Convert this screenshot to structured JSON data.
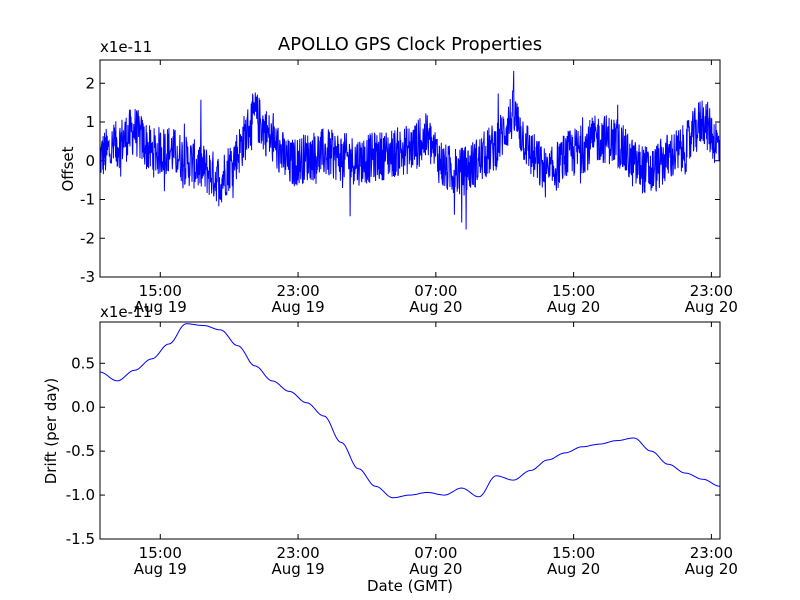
{
  "figure": {
    "title": "APOLLO GPS Clock Properties",
    "xlabel": "Date (GMT)"
  },
  "chart_data": [
    {
      "type": "line",
      "ylabel": "Offset",
      "offset_text": "x1e-11",
      "ylim": [
        -3,
        2.6
      ],
      "yticks": [
        "-3",
        "-2",
        "-1",
        "0",
        "1",
        "2"
      ],
      "xticks": [
        {
          "time": "15:00",
          "date": "Aug 19"
        },
        {
          "time": "23:00",
          "date": "Aug 19"
        },
        {
          "time": "07:00",
          "date": "Aug 20"
        },
        {
          "time": "15:00",
          "date": "Aug 20"
        },
        {
          "time": "23:00",
          "date": "Aug 20"
        }
      ],
      "xrange_hours": [
        "2012-08-19 11:30",
        "2012-08-20 23:30"
      ],
      "line_color": "#0000ff",
      "series": [
        {
          "x": [
            "Aug 19 11:30",
            "Aug 19 12:30",
            "Aug 19 13:30",
            "Aug 19 14:30",
            "Aug 19 15:30",
            "Aug 19 16:30",
            "Aug 19 17:30",
            "Aug 19 18:30",
            "Aug 19 19:30",
            "Aug 19 20:30",
            "Aug 19 21:30",
            "Aug 19 22:30",
            "Aug 19 23:30",
            "Aug 20 00:30",
            "Aug 20 01:30",
            "Aug 20 02:30",
            "Aug 20 03:30",
            "Aug 20 04:30",
            "Aug 20 05:30",
            "Aug 20 06:30",
            "Aug 20 07:30",
            "Aug 20 08:30",
            "Aug 20 09:30",
            "Aug 20 10:30",
            "Aug 20 11:30",
            "Aug 20 12:30",
            "Aug 20 13:30",
            "Aug 20 14:30",
            "Aug 20 15:30",
            "Aug 20 16:30",
            "Aug 20 17:30",
            "Aug 20 18:30",
            "Aug 20 19:30",
            "Aug 20 20:30",
            "Aug 20 21:30",
            "Aug 20 22:30",
            "Aug 20 23:30"
          ],
          "values": [
            0.1,
            0.4,
            0.8,
            0.2,
            0.3,
            0.0,
            -0.2,
            -0.5,
            0.2,
            1.2,
            0.5,
            -0.1,
            0.1,
            0.2,
            0.1,
            0.0,
            0.1,
            0.2,
            0.3,
            0.6,
            -0.2,
            -0.3,
            0.0,
            0.4,
            1.2,
            0.2,
            -0.4,
            0.1,
            0.3,
            0.6,
            0.5,
            -0.1,
            -0.3,
            0.1,
            0.3,
            1.1,
            0.3
          ]
        }
      ]
    },
    {
      "type": "line",
      "ylabel": "Drift (per day)",
      "offset_text": "x1e-11",
      "ylim": [
        -1.5,
        0.97
      ],
      "yticks": [
        "-1.5",
        "-1.0",
        "-0.5",
        "0.0",
        "0.5"
      ],
      "xticks": [
        {
          "time": "15:00",
          "date": "Aug 19"
        },
        {
          "time": "23:00",
          "date": "Aug 19"
        },
        {
          "time": "07:00",
          "date": "Aug 20"
        },
        {
          "time": "15:00",
          "date": "Aug 20"
        },
        {
          "time": "23:00",
          "date": "Aug 20"
        }
      ],
      "line_color": "#0000ff",
      "series": [
        {
          "x": [
            "Aug 19 11:30",
            "Aug 19 12:30",
            "Aug 19 13:30",
            "Aug 19 14:30",
            "Aug 19 15:30",
            "Aug 19 16:30",
            "Aug 19 17:30",
            "Aug 19 18:30",
            "Aug 19 19:30",
            "Aug 19 20:30",
            "Aug 19 21:30",
            "Aug 19 22:30",
            "Aug 19 23:30",
            "Aug 20 00:30",
            "Aug 20 01:30",
            "Aug 20 02:30",
            "Aug 20 03:30",
            "Aug 20 04:30",
            "Aug 20 05:30",
            "Aug 20 06:30",
            "Aug 20 07:30",
            "Aug 20 08:30",
            "Aug 20 09:30",
            "Aug 20 10:30",
            "Aug 20 11:30",
            "Aug 20 12:30",
            "Aug 20 13:30",
            "Aug 20 14:30",
            "Aug 20 15:30",
            "Aug 20 16:30",
            "Aug 20 17:30",
            "Aug 20 18:30",
            "Aug 20 19:30",
            "Aug 20 20:30",
            "Aug 20 21:30",
            "Aug 20 22:30",
            "Aug 20 23:30"
          ],
          "values": [
            0.4,
            0.3,
            0.42,
            0.55,
            0.72,
            0.95,
            0.93,
            0.88,
            0.7,
            0.47,
            0.3,
            0.18,
            0.05,
            -0.1,
            -0.4,
            -0.7,
            -0.9,
            -1.03,
            -1.0,
            -0.97,
            -1.0,
            -0.92,
            -1.02,
            -0.78,
            -0.83,
            -0.72,
            -0.6,
            -0.52,
            -0.45,
            -0.42,
            -0.38,
            -0.35,
            -0.5,
            -0.65,
            -0.75,
            -0.82,
            -0.9
          ]
        }
      ]
    }
  ]
}
